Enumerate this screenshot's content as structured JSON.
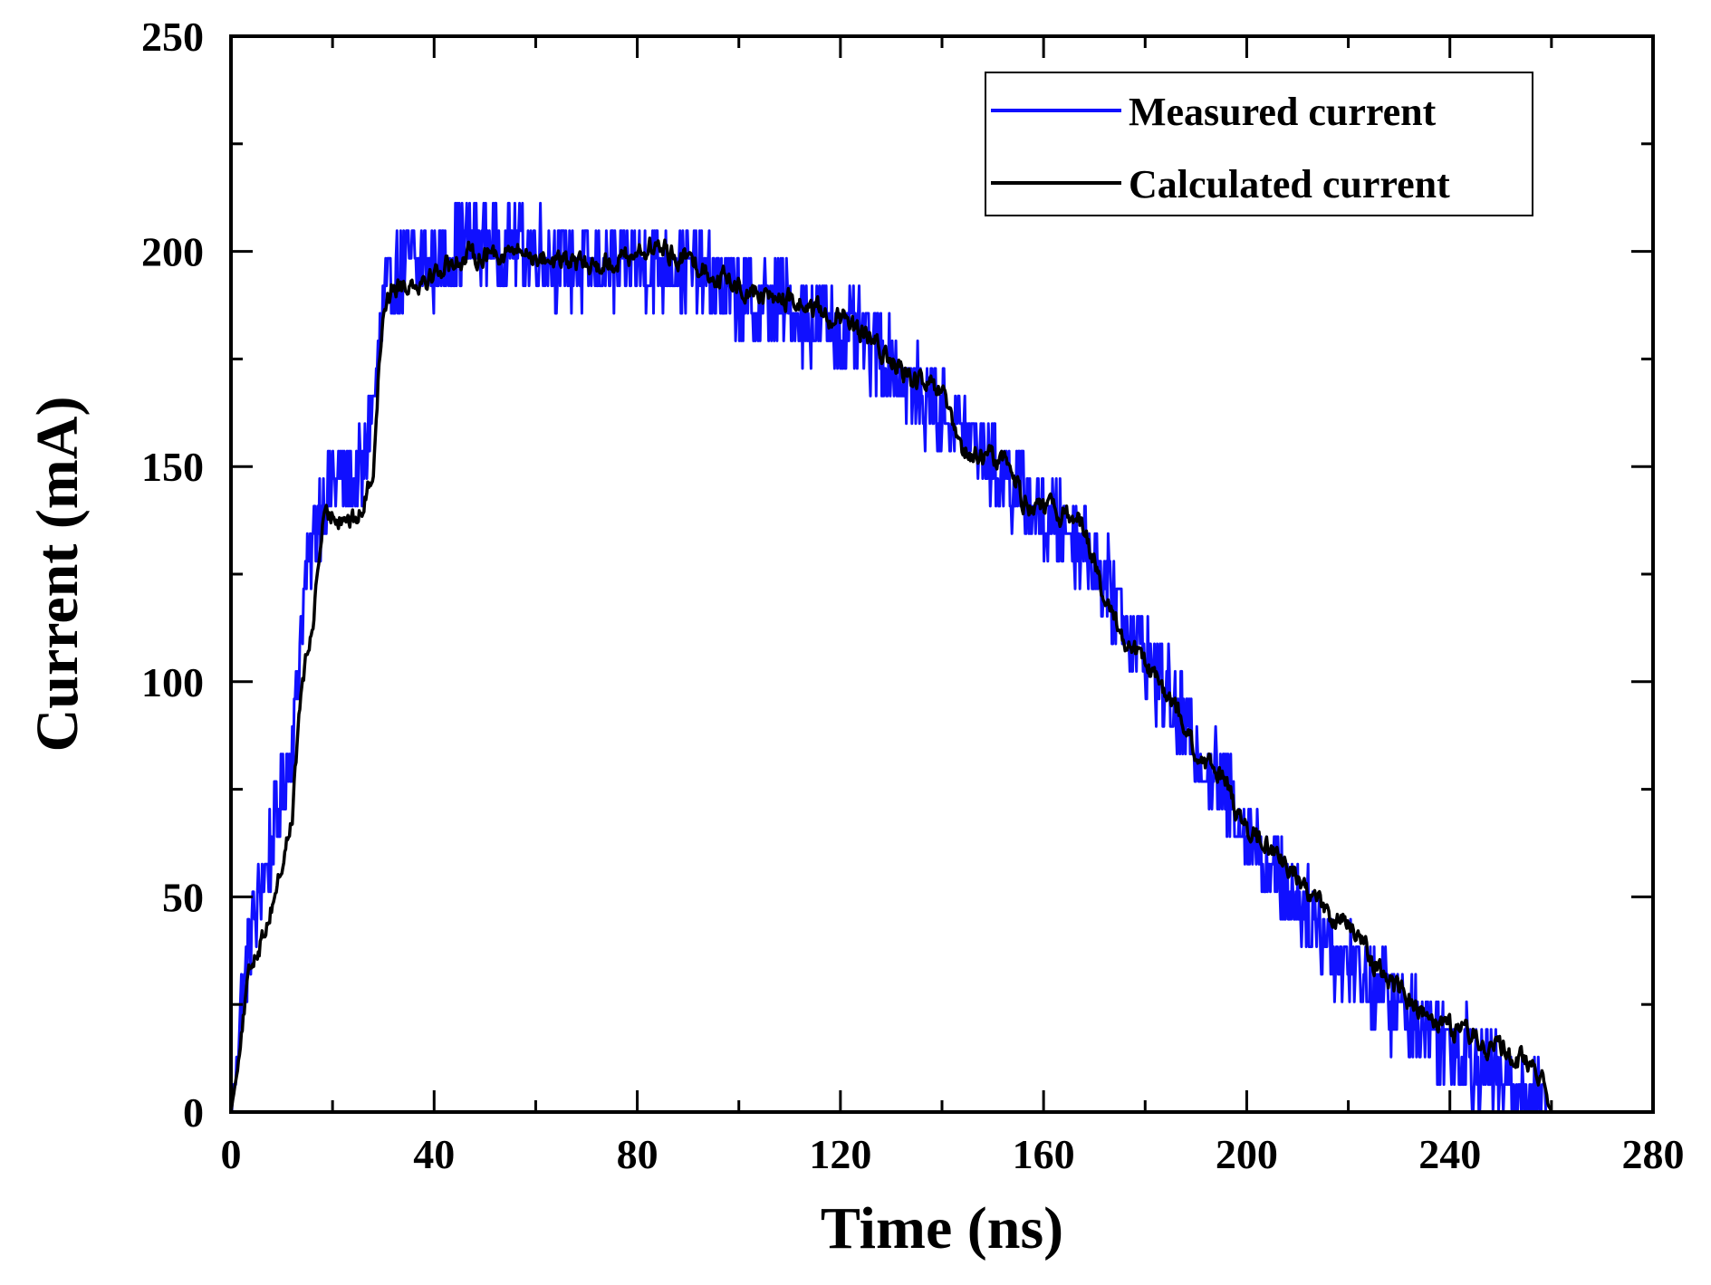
{
  "chart_data": {
    "type": "line",
    "title": "",
    "xlabel": "Time (ns)",
    "ylabel": "Current (mA)",
    "xlim": [
      0,
      280
    ],
    "ylim": [
      0,
      250
    ],
    "x_ticks": [
      0,
      40,
      80,
      120,
      160,
      200,
      240,
      280
    ],
    "y_ticks": [
      0,
      50,
      100,
      150,
      200,
      250
    ],
    "x_tick_labels": [
      "0",
      "40",
      "80",
      "120",
      "160",
      "200",
      "240",
      "280"
    ],
    "y_tick_labels": [
      "0",
      "50",
      "100",
      "150",
      "200",
      "250"
    ],
    "legend_position": "top-right",
    "series": [
      {
        "name": "Measured current",
        "color": "#1010ff",
        "noise": 10,
        "x": [
          0,
          1,
          2,
          4,
          6,
          8,
          10,
          12,
          13,
          14,
          16,
          18,
          20,
          22,
          24,
          26,
          28,
          30,
          32,
          34,
          36,
          40,
          44,
          48,
          52,
          56,
          60,
          64,
          68,
          72,
          76,
          80,
          84,
          88,
          92,
          96,
          100,
          104,
          108,
          112,
          116,
          120,
          124,
          128,
          132,
          136,
          140,
          144,
          148,
          152,
          156,
          160,
          164,
          168,
          172,
          176,
          180,
          184,
          188,
          192,
          196,
          200,
          204,
          208,
          212,
          216,
          220,
          224,
          228,
          232,
          236,
          240,
          244,
          248,
          252,
          256,
          258,
          259,
          260
        ],
        "y": [
          0,
          10,
          25,
          42,
          52,
          62,
          72,
          85,
          100,
          118,
          130,
          143,
          148,
          147,
          147,
          148,
          165,
          185,
          195,
          195,
          197,
          197,
          200,
          203,
          201,
          201,
          200,
          198,
          197,
          196,
          196,
          198,
          197,
          197,
          195,
          192,
          190,
          188,
          187,
          185,
          183,
          181,
          179,
          177,
          170,
          166,
          163,
          159,
          154,
          149,
          143,
          138,
          136,
          133,
          123,
          115,
          106,
          98,
          89,
          82,
          74,
          66,
          58,
          52,
          46,
          40,
          35,
          30,
          26,
          23,
          19,
          16,
          13,
          9,
          6,
          4,
          3,
          1,
          0
        ]
      },
      {
        "name": "Calculated current",
        "color": "#000000",
        "noise": 5,
        "x": [
          0,
          1,
          2,
          3,
          4,
          5,
          6,
          8,
          10,
          12,
          13,
          14,
          16,
          17,
          18,
          20,
          22,
          24,
          26,
          28,
          29,
          30,
          31,
          32,
          36,
          40,
          44,
          48,
          52,
          56,
          60,
          64,
          68,
          72,
          76,
          80,
          84,
          88,
          92,
          96,
          100,
          104,
          108,
          112,
          116,
          120,
          124,
          128,
          132,
          136,
          140,
          142,
          144,
          148,
          152,
          154,
          156,
          160,
          164,
          168,
          170,
          172,
          176,
          180,
          184,
          188,
          190,
          192,
          196,
          198,
          200,
          204,
          208,
          212,
          216,
          220,
          224,
          228,
          232,
          236,
          240,
          244,
          248,
          252,
          256,
          258,
          259,
          260
        ],
        "y": [
          0,
          8,
          18,
          27,
          34,
          38,
          40,
          48,
          57,
          68,
          85,
          100,
          112,
          125,
          136,
          139,
          139,
          137,
          140,
          150,
          170,
          187,
          190,
          192,
          193,
          195,
          198,
          199,
          200,
          200,
          199,
          198,
          197,
          197,
          198,
          200,
          201,
          199,
          197,
          194,
          192,
          190,
          189,
          188,
          186,
          184,
          181,
          177,
          172,
          169,
          167,
          159,
          153,
          152,
          152,
          149,
          142,
          140,
          139,
          137,
          127,
          118,
          110,
          104,
          97,
          90,
          82,
          80,
          78,
          70,
          65,
          62,
          57,
          52,
          46,
          43,
          37,
          31,
          26,
          23,
          20,
          18,
          16,
          13,
          11,
          9,
          3,
          0
        ]
      }
    ]
  }
}
